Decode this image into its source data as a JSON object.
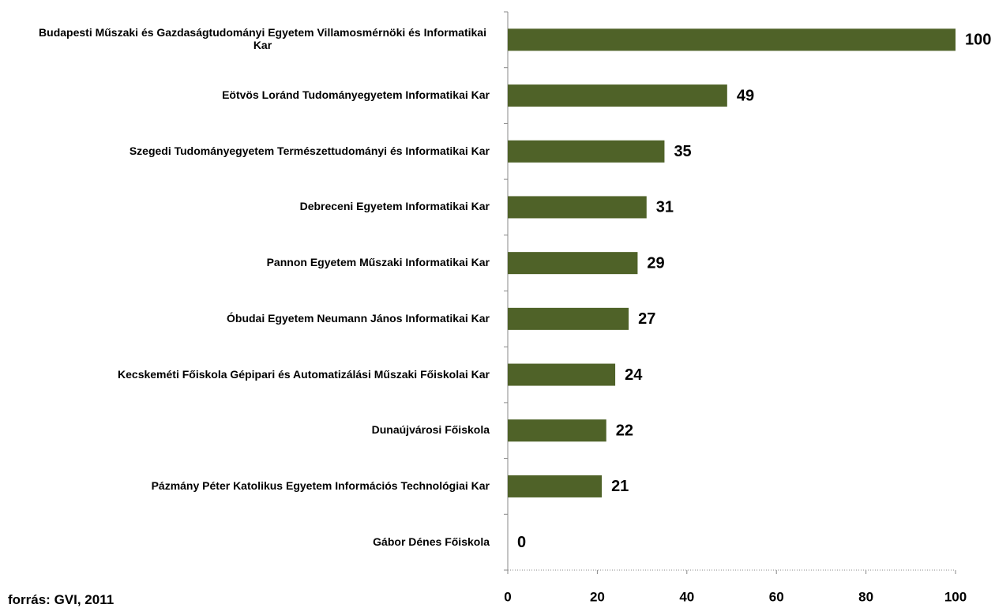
{
  "chart_data": {
    "type": "bar",
    "orientation": "horizontal",
    "categories": [
      "Budapesti Műszaki és Gazdaságtudományi Egyetem Villamosmérnöki és Informatikai Kar",
      "Eötvös Loránd Tudományegyetem Informatikai Kar",
      "Szegedi Tudományegyetem Természettudományi és Informatikai Kar",
      "Debreceni Egyetem Informatikai Kar",
      "Pannon Egyetem Műszaki Informatikai Kar",
      "Óbudai Egyetem Neumann János Informatikai Kar",
      "Kecskeméti Főiskola Gépipari és Automatizálási Műszaki Főiskolai Kar",
      "Dunaújvárosi Főiskola",
      "Pázmány Péter Katolikus Egyetem Információs Technológiai Kar",
      "Gábor Dénes Főiskola"
    ],
    "values": [
      100,
      49,
      35,
      31,
      29,
      27,
      24,
      22,
      21,
      0
    ],
    "color": "#4f6228",
    "xlim": [
      0,
      100
    ],
    "xticks": [
      0,
      20,
      40,
      60,
      80,
      100
    ],
    "source": "forrás: GVI, 2011"
  }
}
